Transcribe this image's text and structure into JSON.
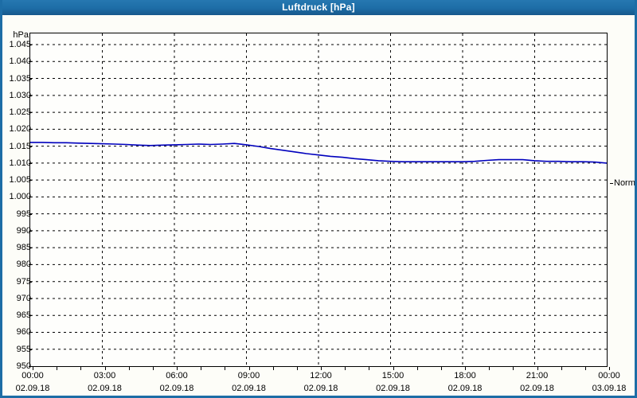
{
  "window": {
    "title": "Luftdruck [hPa]"
  },
  "colors": {
    "titlebar_bg": "#1d6da6",
    "titlebar_text": "#ffffff",
    "window_border": "#1d6da6",
    "page_bg": "#fdfdf8",
    "plot_bg": "#fefefc",
    "grid": "#000000",
    "line": "#0000bd"
  },
  "chart_data": {
    "type": "line",
    "title": "Luftdruck [hPa]",
    "unit_label": "hPa",
    "ylim": [
      950,
      1048.3
    ],
    "grid": "dashed",
    "yticks": [
      {
        "value": 950,
        "label": "950"
      },
      {
        "value": 955,
        "label": "955"
      },
      {
        "value": 960,
        "label": "960"
      },
      {
        "value": 965,
        "label": "965"
      },
      {
        "value": 970,
        "label": "970"
      },
      {
        "value": 975,
        "label": "975"
      },
      {
        "value": 980,
        "label": "980"
      },
      {
        "value": 985,
        "label": "985"
      },
      {
        "value": 990,
        "label": "990"
      },
      {
        "value": 995,
        "label": "995"
      },
      {
        "value": 1000,
        "label": "1.000"
      },
      {
        "value": 1005,
        "label": "1.005"
      },
      {
        "value": 1010,
        "label": "1.010"
      },
      {
        "value": 1015,
        "label": "1.015"
      },
      {
        "value": 1020,
        "label": "1.020"
      },
      {
        "value": 1025,
        "label": "1.025"
      },
      {
        "value": 1030,
        "label": "1.030"
      },
      {
        "value": 1035,
        "label": "1.035"
      },
      {
        "value": 1040,
        "label": "1.040"
      },
      {
        "value": 1045,
        "label": "1.045"
      }
    ],
    "xlim_hours": [
      0,
      24
    ],
    "x_minor_tick_hours": 1,
    "xticks": [
      {
        "hour": 0,
        "time": "00:00",
        "date": "02.09.18"
      },
      {
        "hour": 3,
        "time": "03:00",
        "date": "02.09.18"
      },
      {
        "hour": 6,
        "time": "06:00",
        "date": "02.09.18"
      },
      {
        "hour": 9,
        "time": "09:00",
        "date": "02.09.18"
      },
      {
        "hour": 12,
        "time": "12:00",
        "date": "02.09.18"
      },
      {
        "hour": 15,
        "time": "15:00",
        "date": "02.09.18"
      },
      {
        "hour": 18,
        "time": "18:00",
        "date": "02.09.18"
      },
      {
        "hour": 21,
        "time": "21:00",
        "date": "02.09.18"
      },
      {
        "hour": 24,
        "time": "00:00",
        "date": "03.09.18"
      }
    ],
    "normal_marker": {
      "label": "Normal",
      "value": 1004
    },
    "series": [
      {
        "name": "Luftdruck",
        "x": [
          0,
          0.5,
          1,
          1.5,
          2,
          2.5,
          3,
          3.5,
          4,
          4.5,
          5,
          5.5,
          6,
          6.5,
          7,
          7.5,
          8,
          8.5,
          9,
          9.5,
          10,
          10.5,
          11,
          11.5,
          12,
          12.5,
          13,
          13.5,
          14,
          14.5,
          15,
          15.5,
          16,
          16.5,
          17,
          17.5,
          18,
          18.5,
          19,
          19.5,
          20,
          20.5,
          21,
          21.5,
          22,
          22.5,
          23,
          23.5,
          24
        ],
        "values": [
          1016.1,
          1016.1,
          1016.0,
          1016.0,
          1015.9,
          1015.8,
          1015.7,
          1015.6,
          1015.5,
          1015.3,
          1015.2,
          1015.3,
          1015.4,
          1015.5,
          1015.6,
          1015.5,
          1015.6,
          1015.8,
          1015.4,
          1014.9,
          1014.3,
          1013.8,
          1013.3,
          1012.8,
          1012.4,
          1012.0,
          1011.7,
          1011.3,
          1011.0,
          1010.7,
          1010.5,
          1010.4,
          1010.4,
          1010.4,
          1010.4,
          1010.4,
          1010.4,
          1010.5,
          1010.8,
          1011.0,
          1011.0,
          1011.0,
          1010.7,
          1010.5,
          1010.5,
          1010.4,
          1010.4,
          1010.3,
          1010.0
        ]
      }
    ]
  }
}
